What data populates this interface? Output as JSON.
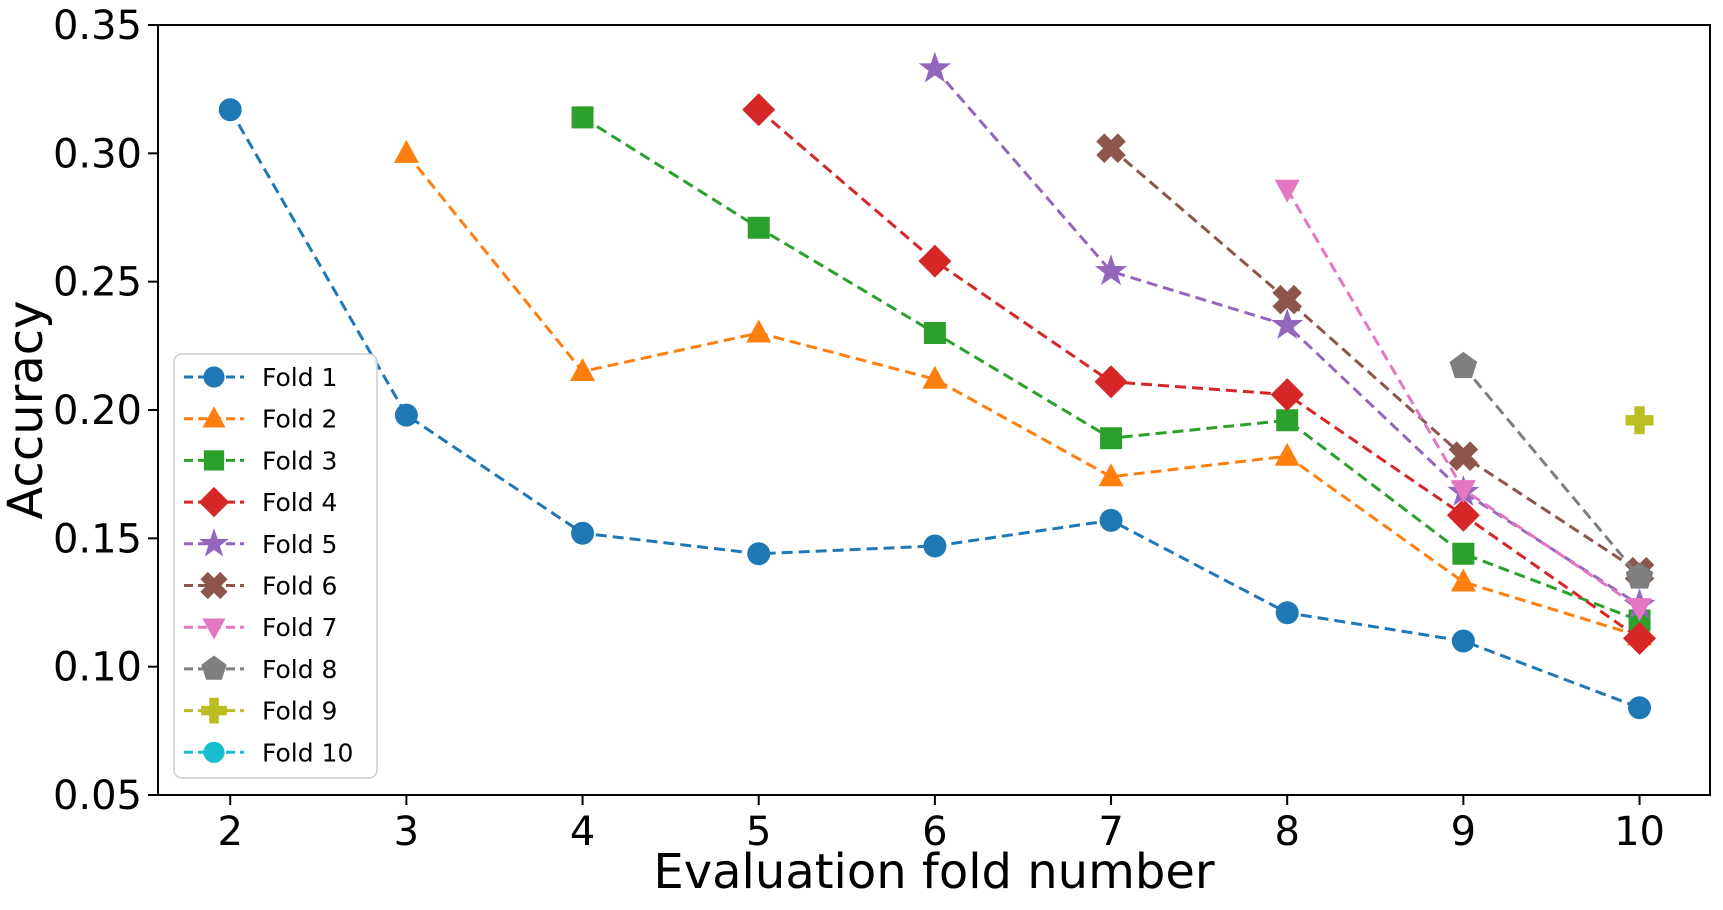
{
  "chart_data": {
    "type": "line",
    "title": "",
    "xlabel": "Evaluation fold number",
    "ylabel": "Accuracy",
    "xlim": [
      1.59,
      10.4
    ],
    "ylim": [
      0.05,
      0.35
    ],
    "xticks": [
      2,
      3,
      4,
      5,
      6,
      7,
      8,
      9,
      10
    ],
    "yticks": [
      0.05,
      0.1,
      0.15,
      0.2,
      0.25,
      0.3,
      0.35
    ],
    "ytick_labels": [
      "0.05",
      "0.10",
      "0.15",
      "0.20",
      "0.25",
      "0.30",
      "0.35"
    ],
    "grid": false,
    "line_style": "dashed",
    "legend_position": "lower-left",
    "background_color": "#ffffff",
    "frame_color": "#000000",
    "series": [
      {
        "name": "Fold 1",
        "color": "#1f77b4",
        "marker": "circle",
        "x": [
          2,
          3,
          4,
          5,
          6,
          7,
          8,
          9,
          10
        ],
        "y": [
          0.317,
          0.198,
          0.152,
          0.144,
          0.147,
          0.157,
          0.121,
          0.11,
          0.084
        ]
      },
      {
        "name": "Fold 2",
        "color": "#ff7f0e",
        "marker": "triangle-up",
        "x": [
          3,
          4,
          5,
          6,
          7,
          8,
          9,
          10
        ],
        "y": [
          0.3,
          0.215,
          0.23,
          0.212,
          0.174,
          0.182,
          0.133,
          0.112
        ]
      },
      {
        "name": "Fold 3",
        "color": "#2ca02c",
        "marker": "square",
        "x": [
          4,
          5,
          6,
          7,
          8,
          9,
          10
        ],
        "y": [
          0.314,
          0.271,
          0.23,
          0.189,
          0.196,
          0.144,
          0.118
        ]
      },
      {
        "name": "Fold 4",
        "color": "#d62728",
        "marker": "diamond",
        "x": [
          5,
          6,
          7,
          8,
          9,
          10
        ],
        "y": [
          0.317,
          0.258,
          0.211,
          0.206,
          0.159,
          0.111
        ]
      },
      {
        "name": "Fold 5",
        "color": "#9467bd",
        "marker": "star",
        "x": [
          6,
          7,
          8,
          9,
          10
        ],
        "y": [
          0.333,
          0.254,
          0.233,
          0.168,
          0.124
        ]
      },
      {
        "name": "Fold 6",
        "color": "#8c564b",
        "marker": "x-filled",
        "x": [
          7,
          8,
          9,
          10
        ],
        "y": [
          0.302,
          0.243,
          0.182,
          0.137
        ]
      },
      {
        "name": "Fold 7",
        "color": "#e377c2",
        "marker": "triangle-down",
        "x": [
          8,
          9,
          10
        ],
        "y": [
          0.286,
          0.169,
          0.123
        ]
      },
      {
        "name": "Fold 8",
        "color": "#7f7f7f",
        "marker": "pentagon",
        "x": [
          9,
          10
        ],
        "y": [
          0.217,
          0.135
        ]
      },
      {
        "name": "Fold 9",
        "color": "#bcbd22",
        "marker": "plus-filled",
        "x": [
          10
        ],
        "y": [
          0.196
        ]
      },
      {
        "name": "Fold 10",
        "color": "#17becf",
        "marker": "circle",
        "x": [],
        "y": []
      }
    ]
  }
}
